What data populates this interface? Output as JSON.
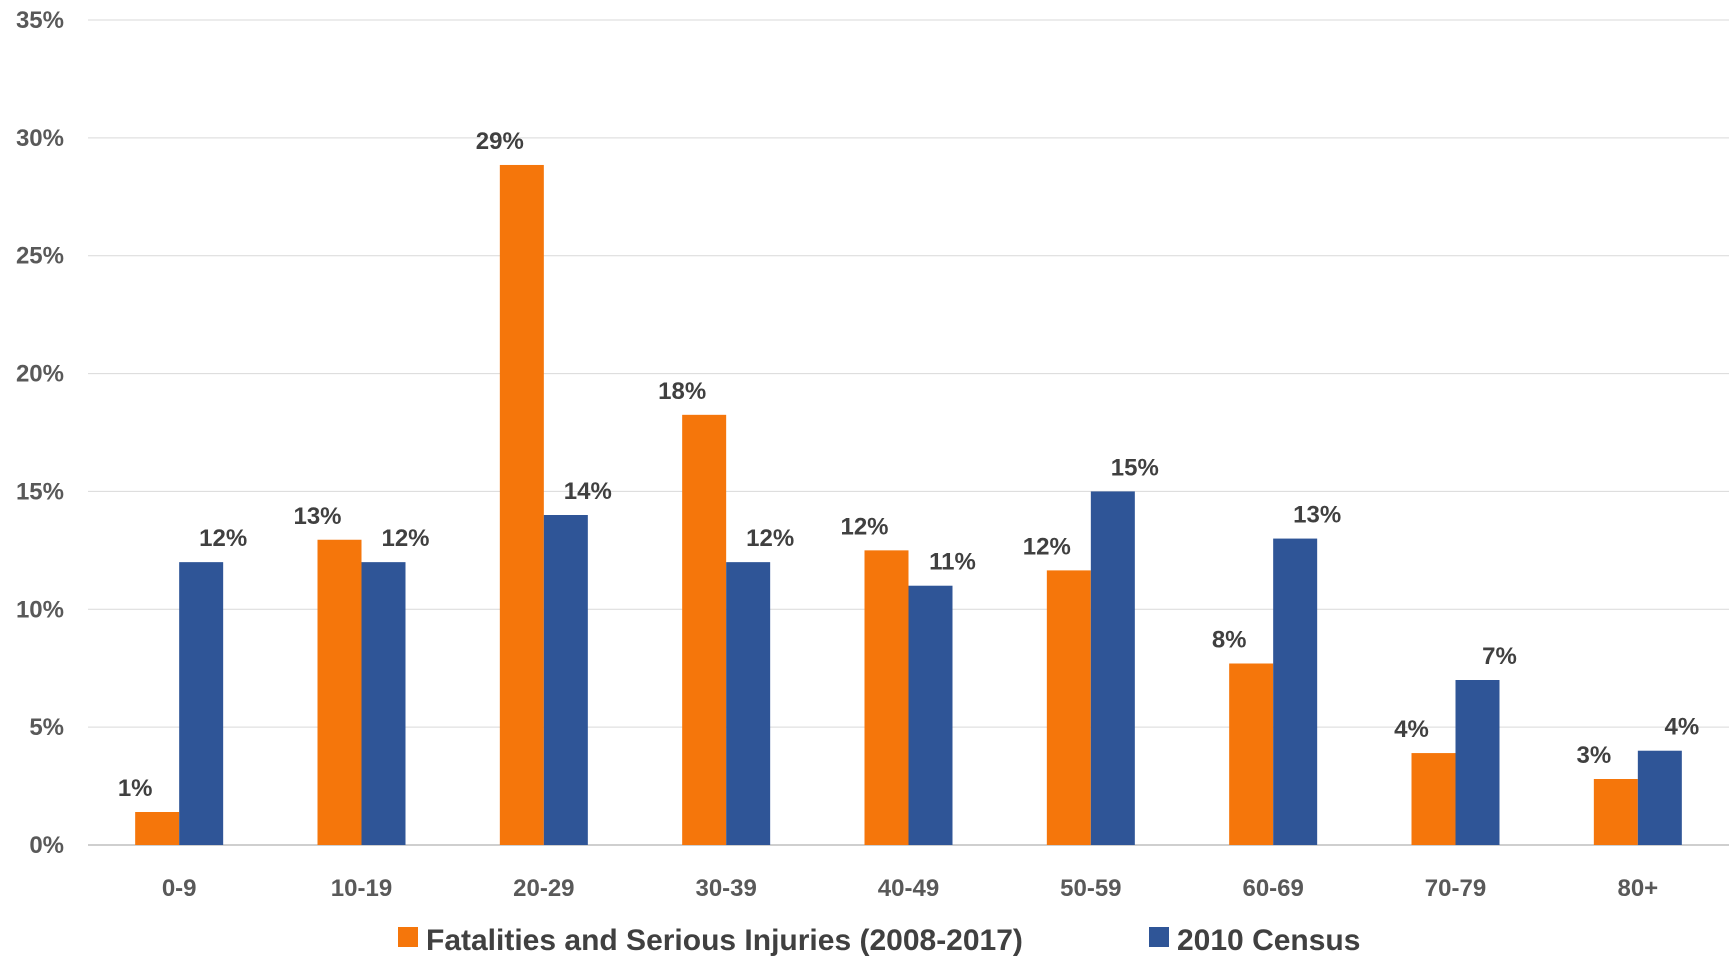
{
  "chart_data": {
    "type": "bar",
    "categories": [
      "0-9",
      "10-19",
      "20-29",
      "30-39",
      "40-49",
      "50-59",
      "60-69",
      "70-79",
      "80+"
    ],
    "series": [
      {
        "name": "Fatalities and Serious Injuries (2008-2017)",
        "color": "#F5760B",
        "values": [
          1.4,
          12.95,
          28.85,
          18.25,
          12.5,
          11.65,
          7.7,
          3.9,
          2.8
        ],
        "labels": [
          "1%",
          "13%",
          "29%",
          "18%",
          "12%",
          "12%",
          "8%",
          "4%",
          "3%"
        ]
      },
      {
        "name": "2010 Census",
        "color": "#2F5597",
        "values": [
          12,
          12,
          14,
          12,
          11,
          15,
          13,
          7,
          4
        ],
        "labels": [
          "12%",
          "12%",
          "14%",
          "12%",
          "11%",
          "15%",
          "13%",
          "7%",
          "4%"
        ]
      }
    ],
    "title": "",
    "xlabel": "",
    "ylabel": "",
    "ylim": [
      0,
      35
    ],
    "yticks": [
      0,
      5,
      10,
      15,
      20,
      25,
      30,
      35
    ],
    "ytick_labels": [
      "0%",
      "5%",
      "10%",
      "15%",
      "20%",
      "25%",
      "30%",
      "35%"
    ],
    "grid": true,
    "legend_position": "bottom"
  }
}
